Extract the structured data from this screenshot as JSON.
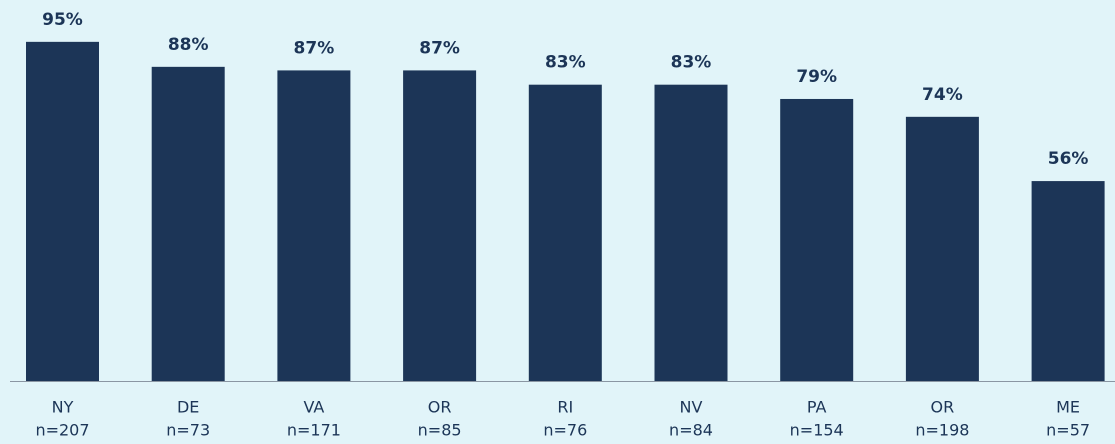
{
  "chart_data": {
    "type": "bar",
    "categories": [
      "NY",
      "DE",
      "VA",
      "OR",
      "RI",
      "NV",
      "PA",
      "OR",
      "ME"
    ],
    "sample_sizes": [
      "n=207",
      "n=73",
      "n=171",
      "n=85",
      "n=76",
      "n=84",
      "n=154",
      "n=198",
      "n=57"
    ],
    "values": [
      95,
      88,
      87,
      87,
      83,
      83,
      79,
      74,
      56
    ],
    "value_labels": [
      "95%",
      "88%",
      "87%",
      "87%",
      "83%",
      "83%",
      "79%",
      "74%",
      "56%"
    ],
    "color": "#1c3557",
    "ylim": [
      0,
      100
    ],
    "grid": false
  }
}
